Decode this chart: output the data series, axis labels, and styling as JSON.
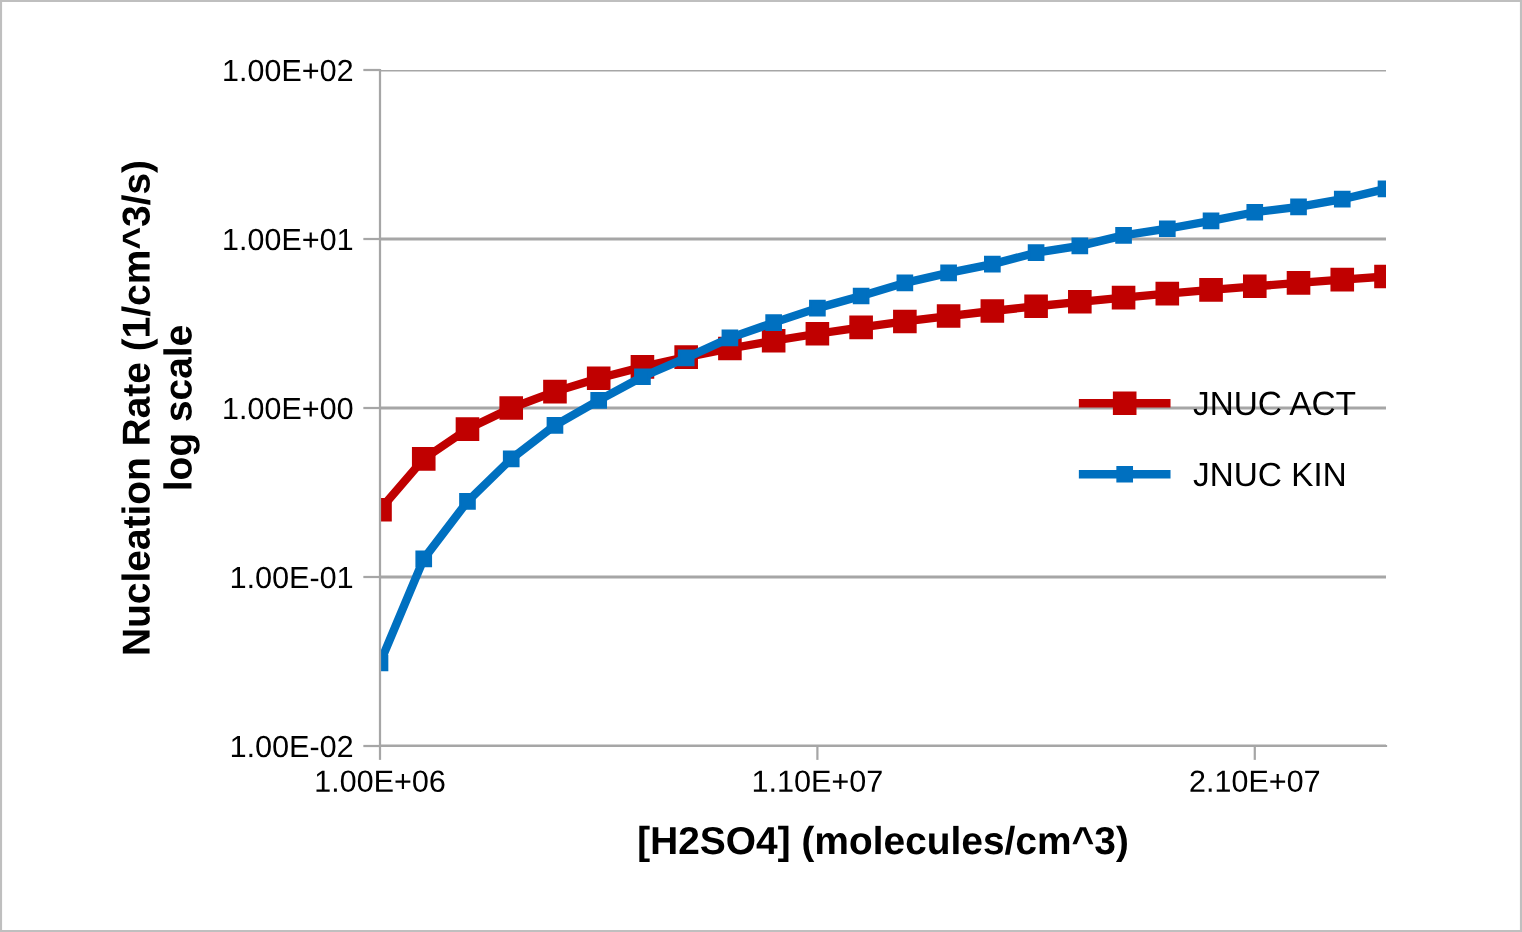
{
  "chart_data": {
    "type": "line",
    "xlabel": "[H2SO4] (molecules/cm^3)",
    "ylabel": "Nucleation Rate (1/cm^3/s)\nlog scale",
    "x": [
      1000000,
      2000000,
      3000000,
      4000000,
      5000000,
      6000000,
      7000000,
      8000000,
      9000000,
      10000000,
      11000000,
      12000000,
      13000000,
      14000000,
      15000000,
      16000000,
      17000000,
      18000000,
      19000000,
      20000000,
      21000000,
      22000000,
      23000000,
      24000000
    ],
    "series": [
      {
        "name": "JNUC ACT",
        "color": "#c00000",
        "values": [
          0.25,
          0.5,
          0.75,
          1.0,
          1.25,
          1.5,
          1.75,
          2.0,
          2.25,
          2.5,
          2.75,
          3.0,
          3.25,
          3.5,
          3.75,
          4.0,
          4.25,
          4.5,
          4.75,
          5.0,
          5.25,
          5.5,
          5.75,
          6.0
        ]
      },
      {
        "name": "JNUC KIN",
        "color": "#0070c0",
        "values": [
          0.031,
          0.128,
          0.28,
          0.5,
          0.79,
          1.11,
          1.53,
          1.98,
          2.6,
          3.2,
          3.9,
          4.6,
          5.5,
          6.3,
          7.1,
          8.3,
          9.1,
          10.5,
          11.5,
          12.8,
          14.4,
          15.5,
          17.2,
          19.8
        ]
      }
    ],
    "log": "y",
    "xlim": [
      1000000,
      24000000
    ],
    "ylim": [
      0.01,
      100
    ],
    "xticks": [
      {
        "value": 1000000,
        "label": "1.00E+06"
      },
      {
        "value": 11000000,
        "label": "1.10E+07"
      },
      {
        "value": 21000000,
        "label": "2.10E+07"
      }
    ],
    "yticks": [
      {
        "value": 0.01,
        "label": "1.00E-02"
      },
      {
        "value": 0.1,
        "label": "1.00E-01"
      },
      {
        "value": 1,
        "label": "1.00E+00"
      },
      {
        "value": 10,
        "label": "1.00E+01"
      },
      {
        "value": 100,
        "label": "1.00E+02"
      }
    ],
    "grid": "y",
    "legend": "right",
    "marker": "square",
    "line_style": "solid"
  }
}
